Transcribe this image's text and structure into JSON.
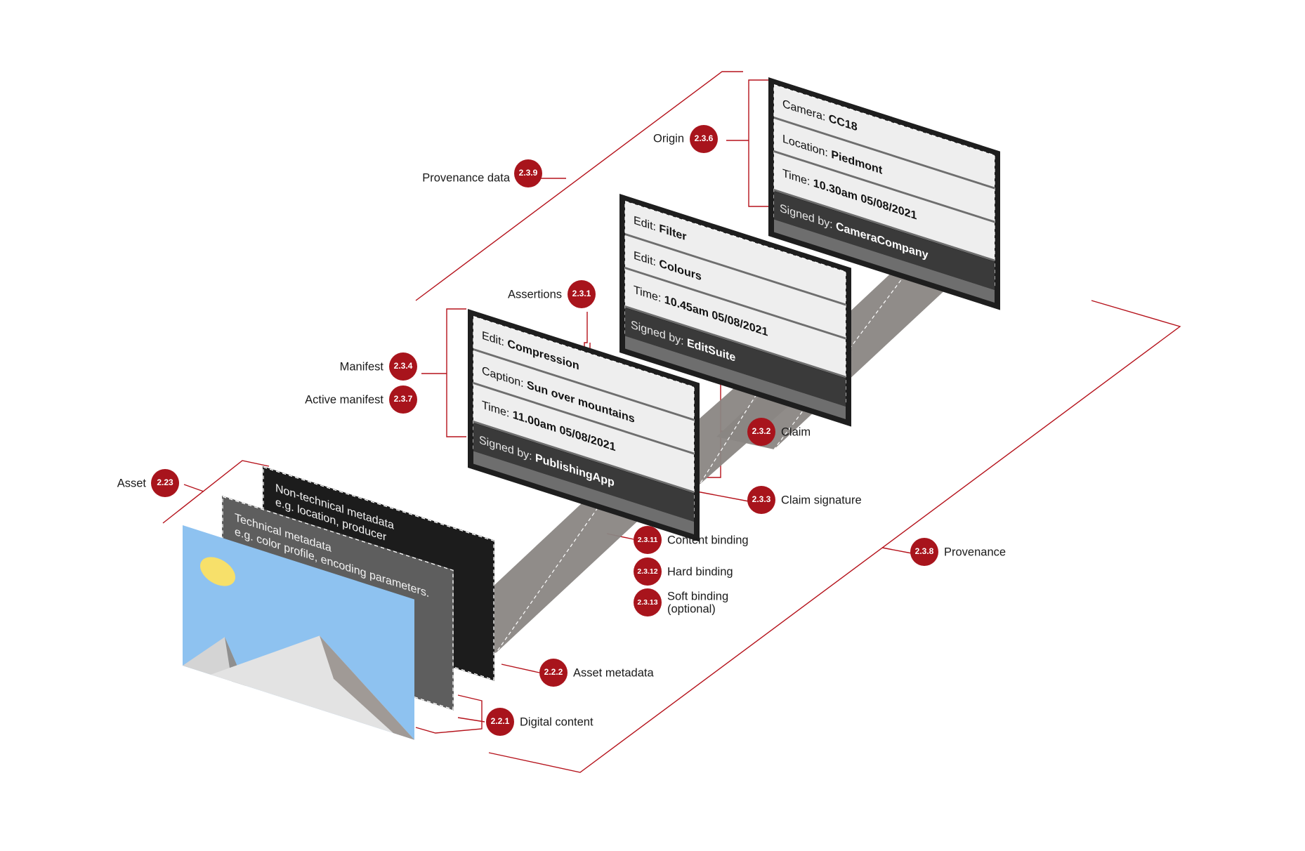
{
  "colors": {
    "accent_red": "#a8141c",
    "beam_gray": "#8a8683",
    "card_frame": "#1e1e1e",
    "card_fill": "#f0f0f0",
    "sky": "#8ec2f0",
    "sun": "#f7e06a",
    "mountain": "#e3e3e3"
  },
  "manifests": [
    {
      "rows": [
        {
          "key": "Camera: ",
          "value": "CC18"
        },
        {
          "key": "Location: ",
          "value": "Piedmont"
        },
        {
          "key": "Time: ",
          "value": "10.30am 05/08/2021"
        }
      ],
      "signed_key": "Signed by: ",
      "signed_value": "CameraCompany"
    },
    {
      "rows": [
        {
          "key": "Edit: ",
          "value": "Filter"
        },
        {
          "key": "Edit: ",
          "value": "Colours"
        },
        {
          "key": "Time: ",
          "value": "10.45am 05/08/2021"
        }
      ],
      "signed_key": "Signed by: ",
      "signed_value": "EditSuite"
    },
    {
      "rows": [
        {
          "key": "Edit: ",
          "value": "Compression"
        },
        {
          "key": "Caption: ",
          "value": "Sun over mountains"
        },
        {
          "key": "Time: ",
          "value": "11.00am 05/08/2021"
        }
      ],
      "signed_key": "Signed by: ",
      "signed_value": "PublishingApp"
    }
  ],
  "metadata_layers": {
    "non_technical": {
      "line1": "Non-technical metadata",
      "line2": "e.g. location, producer"
    },
    "technical": {
      "line1": "Technical metadata",
      "line2": "e.g. color profile, encoding parameters."
    }
  },
  "labels": {
    "origin": {
      "text": "Origin",
      "badge": "2.3.6"
    },
    "provenance_data": {
      "text": "Provenance data",
      "badge": "2.3.9"
    },
    "assertions": {
      "text": "Assertions",
      "badge": "2.3.1"
    },
    "manifest": {
      "text": "Manifest",
      "badge": "2.3.4"
    },
    "active_manifest": {
      "text": "Active manifest",
      "badge": "2.3.7"
    },
    "claim": {
      "text": "Claim",
      "badge": "2.3.2"
    },
    "claim_signature": {
      "text": "Claim signature",
      "badge": "2.3.3"
    },
    "asset": {
      "text": "Asset",
      "badge": "2.23"
    },
    "content_binding": {
      "text": "Content binding",
      "badge": "2.3.11"
    },
    "hard_binding": {
      "text": "Hard binding",
      "badge": "2.3.12"
    },
    "soft_binding": {
      "text": "Soft binding",
      "text2": "(optional)",
      "badge": "2.3.13"
    },
    "provenance": {
      "text": "Provenance",
      "badge": "2.3.8"
    },
    "asset_metadata": {
      "text": "Asset metadata",
      "badge": "2.2.2"
    },
    "digital_content": {
      "text": "Digital content",
      "badge": "2.2.1"
    }
  }
}
